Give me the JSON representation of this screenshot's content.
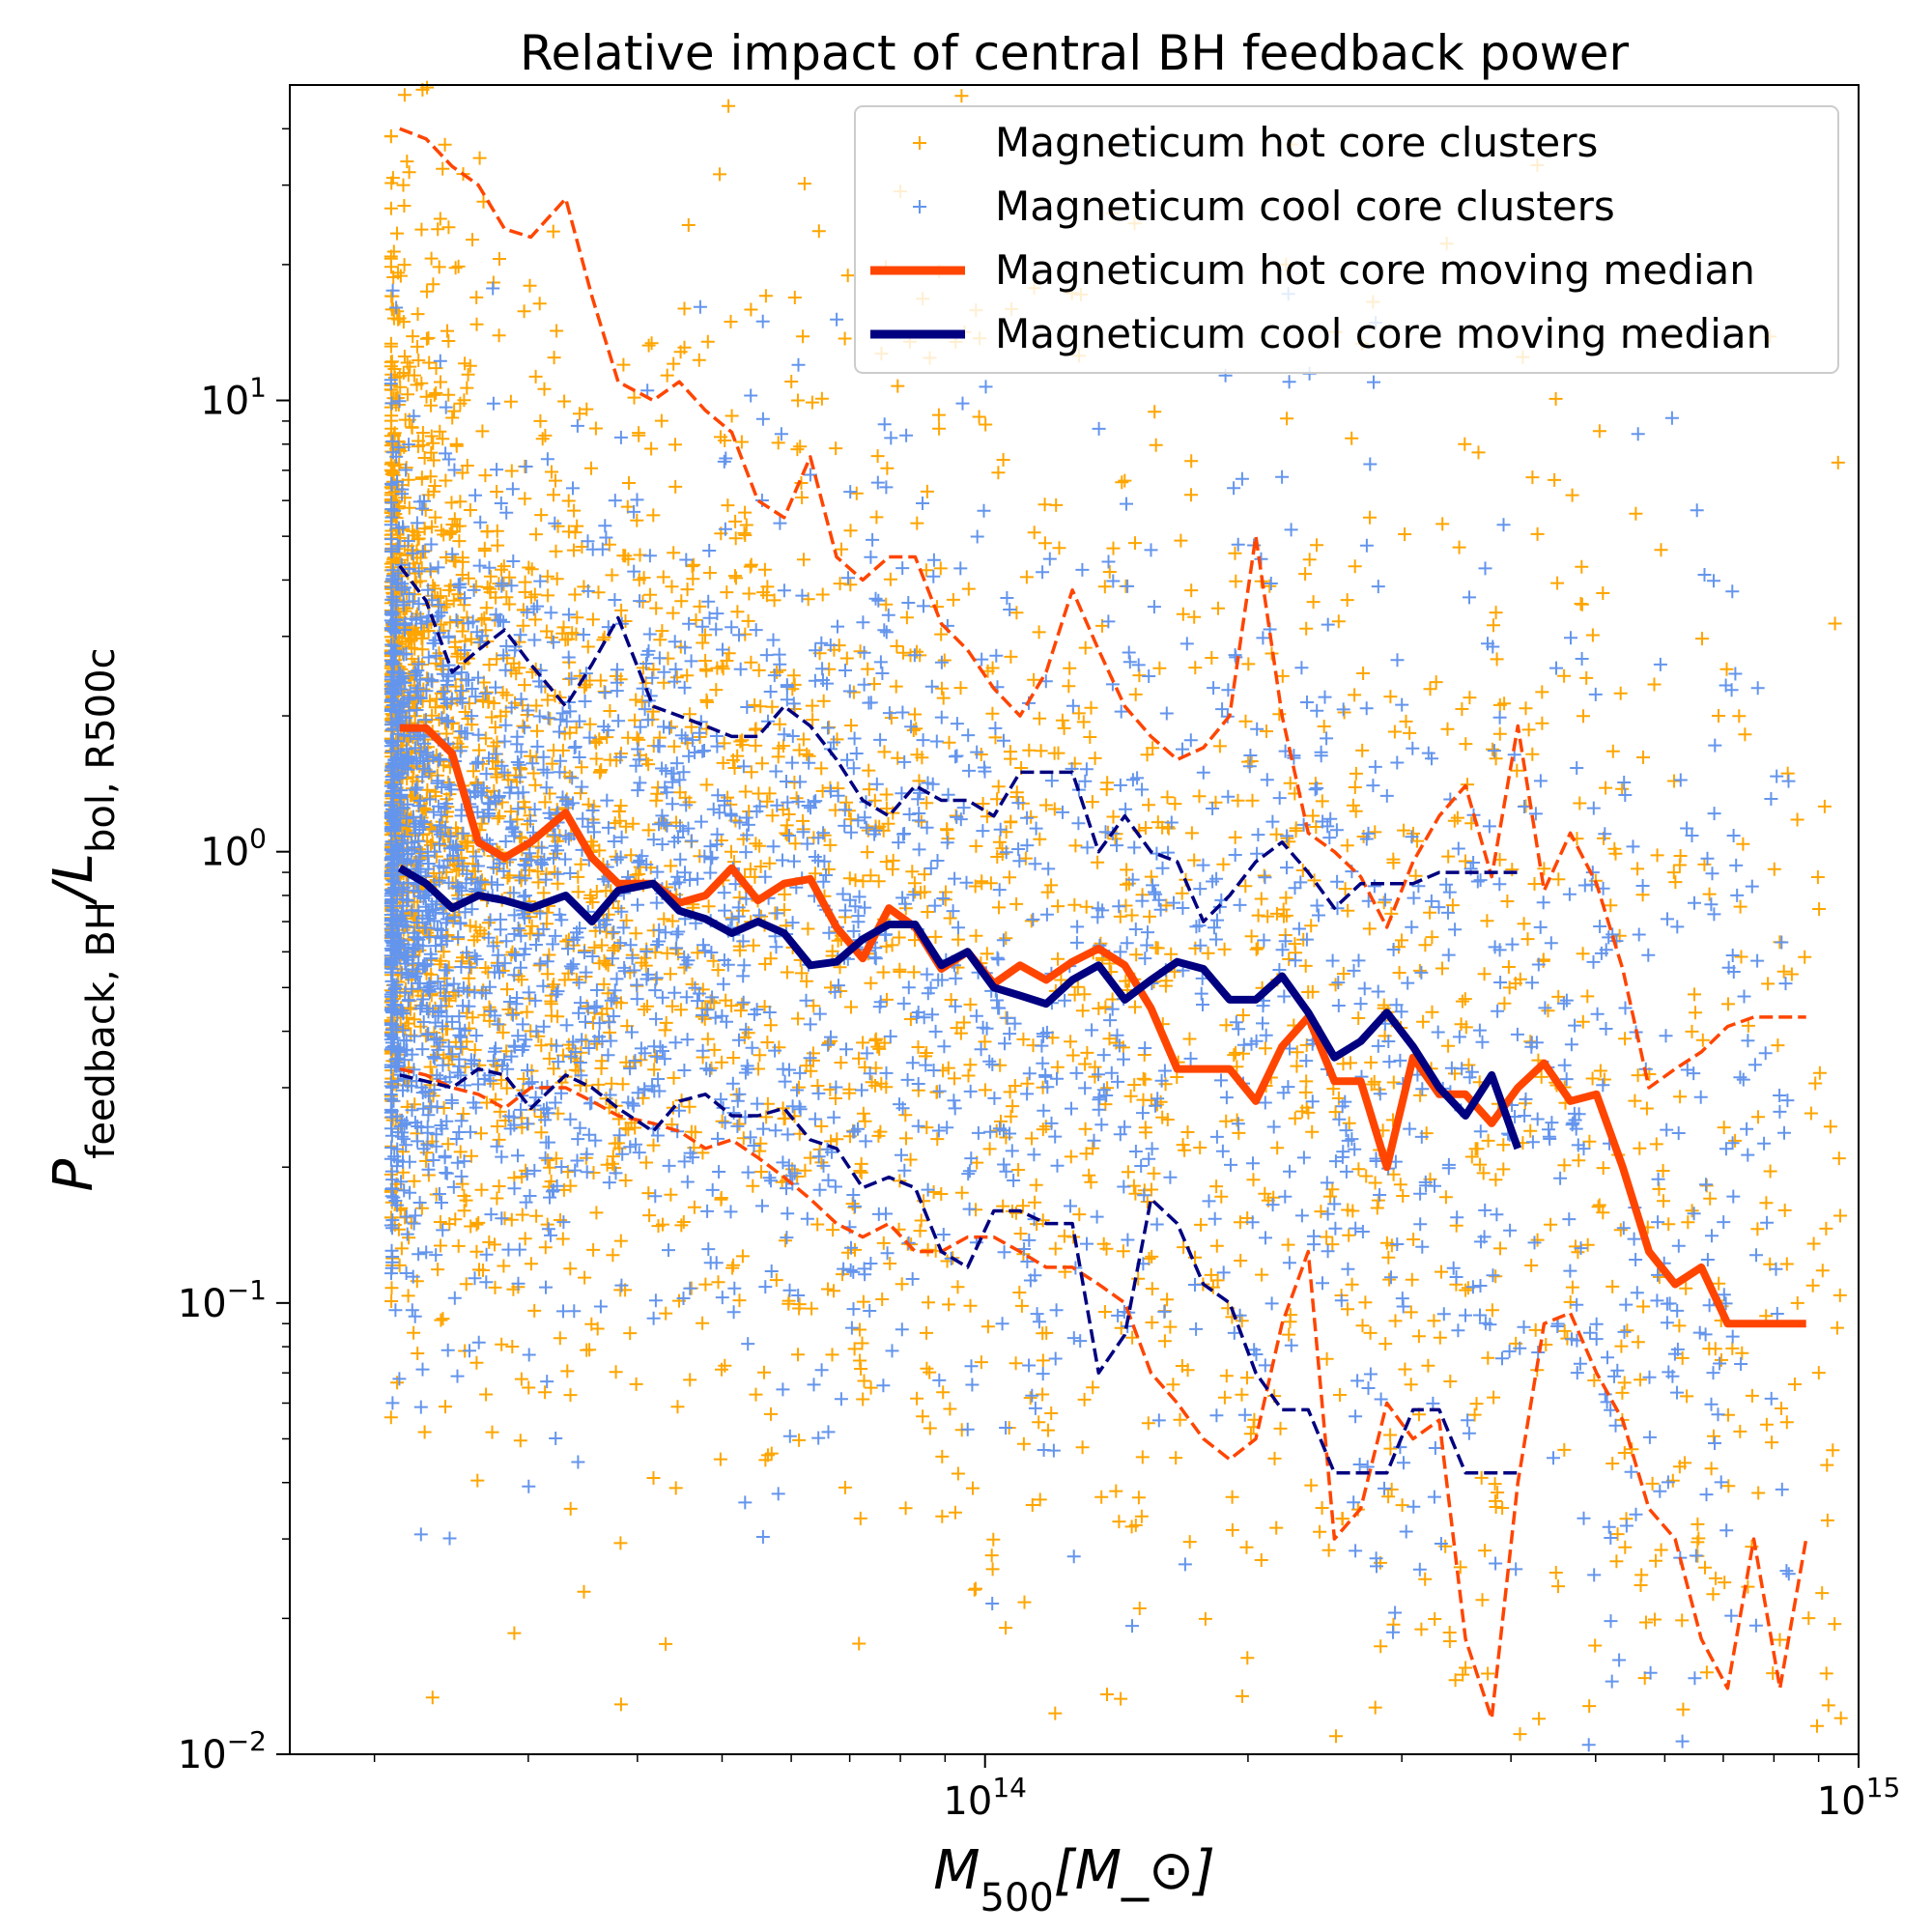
{
  "chart_data": {
    "type": "scatter",
    "title": "Relative impact of central BH feedback power",
    "xlabel": "M_500[M_⊙]",
    "ylabel": "P_feedback, BH/L_bol, R500c",
    "xscale": "log",
    "yscale": "log",
    "xlim": [
      16000000000000,
      1000000000000000
    ],
    "ylim": [
      0.01,
      50
    ],
    "x_ticks": [
      {
        "value": 100000000000000,
        "base": "10",
        "exp": "14"
      },
      {
        "value": 1000000000000000,
        "base": "10",
        "exp": "15"
      }
    ],
    "y_ticks": [
      {
        "value": 0.01,
        "base": "10",
        "exp": "−2"
      },
      {
        "value": 0.1,
        "base": "10",
        "exp": "−1"
      },
      {
        "value": 1,
        "base": "10",
        "exp": "0"
      },
      {
        "value": 10,
        "base": "10",
        "exp": "1"
      }
    ],
    "legend_position": "top-right",
    "scatter_series": [
      {
        "name": "Magneticum hot core clusters",
        "color": "#FFA500",
        "marker": "plus",
        "count": 3200,
        "seed": 7,
        "log_median_scale": 1.0,
        "log_spread": 0.55
      },
      {
        "name": "Magneticum cool core clusters",
        "color": "#6495ED",
        "marker": "plus",
        "count": 2700,
        "seed": 13,
        "log_median_scale": 1.0,
        "log_spread": 0.42
      }
    ],
    "series": [
      {
        "name": "Magneticum hot core moving median",
        "color": "#FF4500",
        "style": "solid",
        "in_legend": true,
        "x_log": [
          13.33,
          13.36,
          13.39,
          13.42,
          13.45,
          13.48,
          13.52,
          13.55,
          13.58,
          13.62,
          13.65,
          13.68,
          13.71,
          13.74,
          13.77,
          13.8,
          13.83,
          13.86,
          13.89,
          13.92,
          13.95,
          13.98,
          14.01,
          14.04,
          14.07,
          14.1,
          14.13,
          14.16,
          14.19,
          14.22,
          14.25,
          14.28,
          14.31,
          14.34,
          14.37,
          14.4,
          14.43,
          14.46,
          14.49,
          14.52,
          14.55,
          14.58,
          14.61,
          14.64,
          14.67,
          14.7,
          14.73,
          14.76,
          14.79,
          14.82,
          14.85,
          14.88,
          14.91,
          14.94
        ],
        "y": [
          1.88,
          1.88,
          1.65,
          1.05,
          0.97,
          1.05,
          1.22,
          0.97,
          0.85,
          0.85,
          0.77,
          0.8,
          0.92,
          0.78,
          0.85,
          0.87,
          0.68,
          0.58,
          0.75,
          0.68,
          0.55,
          0.6,
          0.51,
          0.56,
          0.52,
          0.57,
          0.61,
          0.56,
          0.45,
          0.33,
          0.33,
          0.33,
          0.28,
          0.37,
          0.43,
          0.31,
          0.31,
          0.2,
          0.35,
          0.29,
          0.29,
          0.25,
          0.3,
          0.34,
          0.28,
          0.29,
          0.2,
          0.13,
          0.11,
          0.12,
          0.09,
          0.09,
          0.09,
          0.09
        ]
      },
      {
        "name": "Magneticum cool core moving median",
        "color": "#000080",
        "style": "solid",
        "in_legend": true,
        "x_log": [
          13.33,
          13.36,
          13.39,
          13.42,
          13.45,
          13.48,
          13.52,
          13.55,
          13.58,
          13.62,
          13.65,
          13.68,
          13.71,
          13.74,
          13.77,
          13.8,
          13.83,
          13.86,
          13.89,
          13.92,
          13.95,
          13.98,
          14.01,
          14.04,
          14.07,
          14.1,
          14.13,
          14.16,
          14.19,
          14.22,
          14.25,
          14.28,
          14.31,
          14.34,
          14.37,
          14.4,
          14.43,
          14.46,
          14.49,
          14.52,
          14.55,
          14.58,
          14.61
        ],
        "y": [
          0.92,
          0.85,
          0.75,
          0.8,
          0.78,
          0.75,
          0.8,
          0.7,
          0.82,
          0.85,
          0.74,
          0.71,
          0.66,
          0.7,
          0.66,
          0.56,
          0.57,
          0.64,
          0.69,
          0.69,
          0.56,
          0.6,
          0.5,
          0.48,
          0.46,
          0.52,
          0.56,
          0.47,
          0.52,
          0.57,
          0.55,
          0.47,
          0.47,
          0.53,
          0.44,
          0.35,
          0.38,
          0.44,
          0.37,
          0.3,
          0.26,
          0.32,
          0.22
        ]
      },
      {
        "name": "hot core upper percentile",
        "color": "#FF4500",
        "style": "dashed",
        "in_legend": false,
        "x_log": [
          13.33,
          13.36,
          13.39,
          13.42,
          13.45,
          13.48,
          13.52,
          13.55,
          13.58,
          13.62,
          13.65,
          13.68,
          13.71,
          13.74,
          13.77,
          13.8,
          13.83,
          13.86,
          13.89,
          13.92,
          13.95,
          13.98,
          14.01,
          14.04,
          14.07,
          14.1,
          14.13,
          14.16,
          14.19,
          14.22,
          14.25,
          14.28,
          14.31,
          14.34,
          14.37,
          14.4,
          14.43,
          14.46,
          14.49,
          14.52,
          14.55,
          14.58,
          14.61,
          14.64,
          14.67,
          14.7,
          14.73,
          14.76,
          14.79,
          14.82,
          14.85,
          14.88,
          14.91,
          14.94
        ],
        "y": [
          40,
          38,
          33,
          30,
          24,
          23,
          28,
          17,
          11,
          10,
          11,
          9.5,
          8.5,
          6,
          5.5,
          7.5,
          4.5,
          4,
          4.5,
          4.5,
          3.2,
          2.8,
          2.3,
          2.0,
          2.5,
          3.8,
          2.8,
          2.1,
          1.8,
          1.6,
          1.7,
          2.0,
          5.0,
          2.0,
          1.1,
          1.0,
          0.88,
          0.68,
          0.95,
          1.2,
          1.4,
          0.88,
          1.9,
          0.82,
          1.1,
          0.85,
          0.55,
          0.3,
          0.33,
          0.36,
          0.41,
          0.43,
          0.43,
          0.43
        ]
      },
      {
        "name": "hot core lower percentile",
        "color": "#FF4500",
        "style": "dashed",
        "in_legend": false,
        "x_log": [
          13.33,
          13.36,
          13.39,
          13.42,
          13.45,
          13.48,
          13.52,
          13.55,
          13.58,
          13.62,
          13.65,
          13.68,
          13.71,
          13.74,
          13.77,
          13.8,
          13.83,
          13.86,
          13.89,
          13.92,
          13.95,
          13.98,
          14.01,
          14.04,
          14.07,
          14.1,
          14.13,
          14.16,
          14.19,
          14.22,
          14.25,
          14.28,
          14.31,
          14.34,
          14.37,
          14.4,
          14.43,
          14.46,
          14.49,
          14.52,
          14.55,
          14.58,
          14.61,
          14.64,
          14.67,
          14.7,
          14.73,
          14.76,
          14.79,
          14.82,
          14.85,
          14.88,
          14.91,
          14.94
        ],
        "y": [
          0.33,
          0.32,
          0.3,
          0.29,
          0.27,
          0.3,
          0.3,
          0.28,
          0.26,
          0.25,
          0.24,
          0.22,
          0.23,
          0.21,
          0.19,
          0.17,
          0.15,
          0.14,
          0.15,
          0.13,
          0.13,
          0.14,
          0.14,
          0.13,
          0.12,
          0.12,
          0.11,
          0.1,
          0.07,
          0.06,
          0.05,
          0.045,
          0.05,
          0.09,
          0.13,
          0.03,
          0.035,
          0.06,
          0.05,
          0.055,
          0.018,
          0.012,
          0.04,
          0.09,
          0.095,
          0.07,
          0.055,
          0.035,
          0.03,
          0.018,
          0.014,
          0.03,
          0.014,
          0.03
        ]
      },
      {
        "name": "cool core upper percentile",
        "color": "#000080",
        "style": "dashed",
        "in_legend": false,
        "x_log": [
          13.33,
          13.36,
          13.39,
          13.42,
          13.45,
          13.48,
          13.52,
          13.55,
          13.58,
          13.62,
          13.65,
          13.68,
          13.71,
          13.74,
          13.77,
          13.8,
          13.83,
          13.86,
          13.89,
          13.92,
          13.95,
          13.98,
          14.01,
          14.04,
          14.07,
          14.1,
          14.13,
          14.16,
          14.19,
          14.22,
          14.25,
          14.28,
          14.31,
          14.34,
          14.37,
          14.4,
          14.43,
          14.46,
          14.49,
          14.52,
          14.55,
          14.58,
          14.61
        ],
        "y": [
          4.3,
          3.6,
          2.5,
          2.8,
          3.1,
          2.6,
          2.1,
          2.6,
          3.3,
          2.1,
          2.0,
          1.9,
          1.8,
          1.8,
          2.1,
          1.9,
          1.6,
          1.3,
          1.2,
          1.4,
          1.3,
          1.3,
          1.2,
          1.5,
          1.5,
          1.5,
          1.0,
          1.2,
          1.0,
          0.95,
          0.7,
          0.8,
          0.95,
          1.05,
          0.9,
          0.75,
          0.85,
          0.85,
          0.85,
          0.9,
          0.9,
          0.9,
          0.9
        ]
      },
      {
        "name": "cool core lower percentile",
        "color": "#000080",
        "style": "dashed",
        "in_legend": false,
        "x_log": [
          13.33,
          13.36,
          13.39,
          13.42,
          13.45,
          13.48,
          13.52,
          13.55,
          13.58,
          13.62,
          13.65,
          13.68,
          13.71,
          13.74,
          13.77,
          13.8,
          13.83,
          13.86,
          13.89,
          13.92,
          13.95,
          13.98,
          14.01,
          14.04,
          14.07,
          14.1,
          14.13,
          14.16,
          14.19,
          14.22,
          14.25,
          14.28,
          14.31,
          14.34,
          14.37,
          14.4,
          14.43,
          14.46,
          14.49,
          14.52,
          14.55,
          14.58,
          14.61
        ],
        "y": [
          0.32,
          0.31,
          0.3,
          0.33,
          0.32,
          0.27,
          0.32,
          0.3,
          0.27,
          0.24,
          0.28,
          0.29,
          0.26,
          0.26,
          0.27,
          0.23,
          0.22,
          0.18,
          0.19,
          0.18,
          0.13,
          0.12,
          0.16,
          0.16,
          0.15,
          0.15,
          0.07,
          0.085,
          0.17,
          0.15,
          0.11,
          0.1,
          0.07,
          0.058,
          0.058,
          0.042,
          0.042,
          0.042,
          0.058,
          0.058,
          0.042,
          0.042,
          0.042
        ]
      }
    ]
  }
}
